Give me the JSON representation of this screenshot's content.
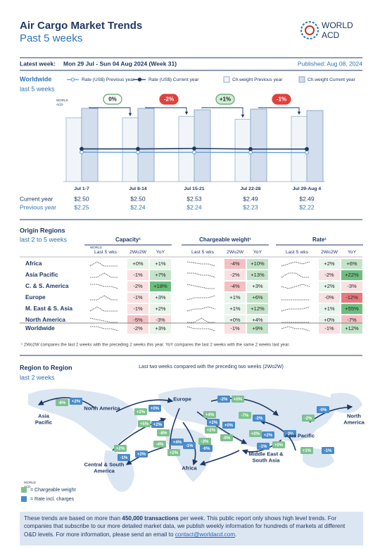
{
  "header": {
    "title": "Air Cargo Market Trends",
    "subtitle": "Past 5 weeks",
    "logo": [
      "WORLD",
      "ACD"
    ]
  },
  "week": {
    "label": "Latest week:",
    "value": "Mon 29 Jul - Sun 04 Aug 2024 (Week 31)",
    "published": "Published: Aug 08, 2024"
  },
  "worldwide": {
    "title": "Worldwide",
    "subtitle": "last 5 weeks",
    "chart_data": {
      "type": "bar-line",
      "categories": [
        "Jul 1-7",
        "Jul 8-14",
        "Jul 15-21",
        "Jul 22-28",
        "Jul 29-Aug 4"
      ],
      "series": [
        {
          "name": "Rate (US$) Previous year",
          "color": "#5b9bd5",
          "row_label": "Previous year",
          "values": [
            2.25,
            2.24,
            2.24,
            2.23,
            2.22
          ],
          "value_labels": [
            "$2.25",
            "$2.24",
            "$2.24",
            "$2.23",
            "$2.22"
          ]
        },
        {
          "name": "Rate (US$) Current year",
          "color": "#1f3864",
          "row_label": "Current year",
          "values": [
            2.5,
            2.5,
            2.53,
            2.49,
            2.49
          ],
          "value_labels": [
            "$2.50",
            "$2.50",
            "$2.53",
            "$2.49",
            "$2.49"
          ]
        },
        {
          "name": "Ch.weight Previous year",
          "color": "#f1f5fa",
          "values": [
            88,
            88,
            90,
            86,
            90
          ]
        },
        {
          "name": "Ch.weight Current year",
          "color": "#d3deec",
          "values": [
            101,
            101,
            99,
            100,
            98
          ]
        }
      ],
      "changes": [
        "0%",
        "-2%",
        "+1%",
        "-1%"
      ]
    }
  },
  "origin": {
    "title": "Origin Regions",
    "subtitle": "last 2 to 5 weeks",
    "groups": [
      "Capacity¹",
      "Chargeable weight¹",
      "Rate¹"
    ],
    "columns": [
      "Last 5 wks",
      "2Wo2W",
      "YoY"
    ],
    "rows": [
      {
        "name": "Africa",
        "cells": [
          [
            "+0%",
            "+1%"
          ],
          [
            "-4%",
            "+10%"
          ],
          [
            "+2%",
            "+6%"
          ]
        ],
        "trends": [
          [
            50,
            51,
            50,
            50,
            50
          ],
          [
            53,
            52,
            51,
            51,
            49
          ],
          [
            49,
            50,
            51,
            50,
            51
          ]
        ]
      },
      {
        "name": "Asia Pacific",
        "cells": [
          [
            "-1%",
            "+7%"
          ],
          [
            "-2%",
            "+13%"
          ],
          [
            "-2%",
            "+22%"
          ]
        ],
        "trends": [
          [
            50,
            50,
            51,
            50,
            50
          ],
          [
            51,
            51,
            50,
            50,
            49
          ],
          [
            50,
            51,
            51,
            50,
            50
          ]
        ]
      },
      {
        "name": "C. & S. America",
        "cells": [
          [
            "-2%",
            "+18%"
          ],
          [
            "-4%",
            "+3%"
          ],
          [
            "+2%",
            "-3%"
          ]
        ],
        "trends": [
          [
            51,
            51,
            50,
            50,
            49
          ],
          [
            52,
            51,
            50,
            49,
            49
          ],
          [
            50,
            49,
            50,
            51,
            50
          ]
        ]
      },
      {
        "name": "Europe",
        "cells": [
          [
            "-1%",
            "+3%"
          ],
          [
            "+1%",
            "+6%"
          ],
          [
            "-0%",
            "-12%"
          ]
        ],
        "trends": [
          [
            50,
            50,
            51,
            50,
            50
          ],
          [
            49,
            50,
            50,
            50,
            51
          ],
          [
            50,
            50,
            50,
            50,
            50
          ]
        ]
      },
      {
        "name": "M. East & S. Asia",
        "cells": [
          [
            "-1%",
            "+2%"
          ],
          [
            "+1%",
            "+12%"
          ],
          [
            "+1%",
            "+55%"
          ]
        ],
        "trends": [
          [
            50,
            51,
            50,
            50,
            50
          ],
          [
            49,
            50,
            50,
            51,
            50
          ],
          [
            49,
            50,
            50,
            50,
            51
          ]
        ]
      },
      {
        "name": "North America",
        "cells": [
          [
            "-5%",
            "-3%"
          ],
          [
            "+0%",
            "+4%"
          ],
          [
            "+0%",
            "-7%"
          ]
        ],
        "trends": [
          [
            52,
            51,
            50,
            49,
            49
          ],
          [
            50,
            50,
            51,
            50,
            50
          ],
          [
            50,
            50,
            50,
            50,
            50
          ]
        ]
      },
      {
        "name": "Worldwide",
        "cells": [
          [
            "-2%",
            "+3%"
          ],
          [
            "-1%",
            "+9%"
          ],
          [
            "-1%",
            "+12%"
          ]
        ],
        "trends": [
          [
            51,
            51,
            50,
            50,
            49
          ],
          [
            51,
            50,
            50,
            50,
            49
          ],
          [
            50,
            51,
            50,
            50,
            49
          ]
        ]
      }
    ],
    "footnote": "¹ 2Wo2W compares the last 2 weeks with the preceding 2 weeks this year. YoY compares the last 2 weeks with the same 2 weeks last year."
  },
  "region_map": {
    "title": "Region to Region",
    "subtitle": "last 2 weeks",
    "caption": "Last two weeks compared with the preceding two weeks (2Wo2W)",
    "regions": [
      "Asia Pacific",
      "North America",
      "Europe",
      "Middle East & South Asia",
      "Africa",
      "Central & South America",
      "Asia Pacific",
      "North America"
    ],
    "legend": [
      {
        "label": "= Chargeable weight",
        "color": "#7dc18f"
      },
      {
        "label": "= Rate incl. charges",
        "color": "#4a8bcb"
      }
    ],
    "changes": [
      {
        "label": "-6%",
        "legend": 0
      },
      {
        "label": "+2%",
        "legend": 1
      },
      {
        "label": "-2%",
        "legend": 1
      },
      {
        "label": "+0%",
        "legend": 0
      },
      {
        "label": "+0%",
        "legend": 1
      },
      {
        "label": "+2%",
        "legend": 0
      },
      {
        "label": "+5%",
        "legend": 0
      },
      {
        "label": "+2%",
        "legend": 1
      },
      {
        "label": "+4%",
        "legend": 0
      },
      {
        "label": "+2%",
        "legend": 1
      },
      {
        "label": "-7%",
        "legend": 0
      },
      {
        "label": "-2%",
        "legend": 1
      },
      {
        "label": "-0%",
        "legend": 1
      },
      {
        "label": "-2%",
        "legend": 0
      },
      {
        "label": "+0%",
        "legend": 1
      },
      {
        "label": "+2%",
        "legend": 0
      },
      {
        "label": "-8%",
        "legend": 0
      },
      {
        "label": "-4%",
        "legend": 0
      },
      {
        "label": "+4%",
        "legend": 1
      },
      {
        "label": "+2%",
        "legend": 0
      },
      {
        "label": "-3%",
        "legend": 0
      },
      {
        "label": "-0%",
        "legend": 0
      },
      {
        "label": "-1%",
        "legend": 1
      },
      {
        "label": "-0%",
        "legend": 1
      },
      {
        "label": "+2%",
        "legend": 0
      },
      {
        "label": "-1%",
        "legend": 1
      },
      {
        "label": "+2%",
        "legend": 1
      },
      {
        "label": "+0%",
        "legend": 0
      },
      {
        "label": "+2%",
        "legend": 1
      },
      {
        "label": "-3%",
        "legend": 1
      },
      {
        "label": "+0%",
        "legend": 0
      },
      {
        "label": "-1%",
        "legend": 1
      },
      {
        "label": "+1%",
        "legend": 0
      },
      {
        "label": "-1%",
        "legend": 1
      }
    ]
  },
  "footer": {
    "parts": [
      "These trends are based on more than ",
      "450,000 transactions",
      " per week. This public report only shows high level trends. For companies that subscribe to our more detailed market data, we publish weekly information for hundreds of markets at different O&D levels. For more information, please send an email to ",
      "contact@worldacd.com",
      "."
    ]
  }
}
